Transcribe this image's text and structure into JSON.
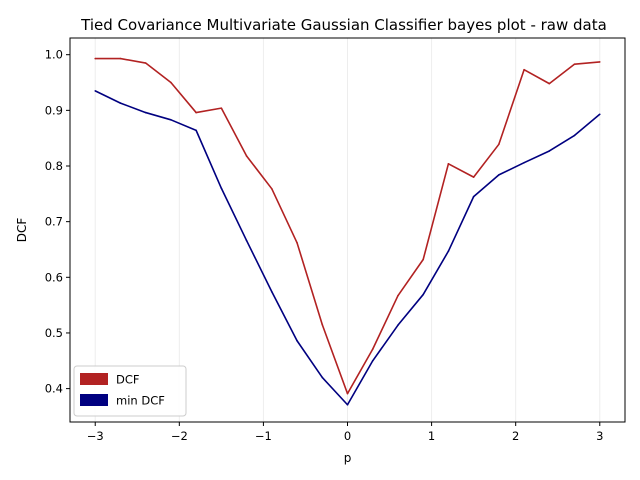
{
  "chart_data": {
    "type": "line",
    "title": "Tied Covariance Multivariate Gaussian Classifier bayes plot - raw data",
    "xlabel": "p",
    "ylabel": "DCF",
    "xlim": [
      -3.3,
      3.3
    ],
    "ylim": [
      0.34,
      1.03
    ],
    "xticks": [
      -3,
      -2,
      -1,
      0,
      1,
      2,
      3
    ],
    "xtick_labels": [
      "−3",
      "−2",
      "−1",
      "0",
      "1",
      "2",
      "3"
    ],
    "yticks": [
      0.4,
      0.5,
      0.6,
      0.7,
      0.8,
      0.9,
      1.0
    ],
    "ytick_labels": [
      "0.4",
      "0.5",
      "0.6",
      "0.7",
      "0.8",
      "0.9",
      "1.0"
    ],
    "grid": "faint vertical gridlines",
    "legend_position": "lower-left",
    "x": [
      -3.0,
      -2.7,
      -2.4,
      -2.1,
      -1.8,
      -1.5,
      -1.2,
      -0.9,
      -0.6,
      -0.3,
      0.0,
      0.3,
      0.6,
      0.9,
      1.2,
      1.5,
      1.8,
      2.1,
      2.4,
      2.7,
      3.0
    ],
    "series": [
      {
        "name": "DCF",
        "color": "#b22222",
        "values": [
          0.993,
          0.993,
          0.985,
          0.95,
          0.896,
          0.904,
          0.818,
          0.759,
          0.662,
          0.515,
          0.391,
          0.471,
          0.567,
          0.632,
          0.804,
          0.78,
          0.839,
          0.973,
          0.948,
          0.983,
          0.987
        ]
      },
      {
        "name": "min DCF",
        "color": "#000080",
        "values": [
          0.935,
          0.913,
          0.896,
          0.883,
          0.864,
          0.76,
          0.666,
          0.574,
          0.486,
          0.42,
          0.371,
          0.45,
          0.514,
          0.569,
          0.647,
          0.745,
          0.784,
          0.806,
          0.827,
          0.855,
          0.893
        ]
      }
    ]
  }
}
